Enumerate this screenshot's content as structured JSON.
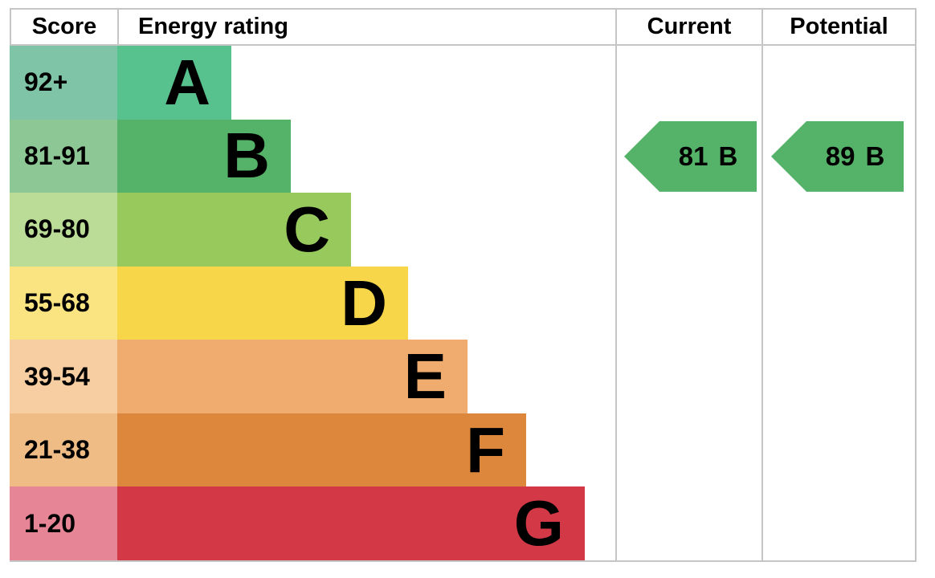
{
  "header": {
    "score": "Score",
    "energy_rating": "Energy rating",
    "current": "Current",
    "potential": "Potential"
  },
  "chart_data": {
    "type": "bar",
    "chart_kind": "epc-energy-efficiency-rating",
    "columns": [
      "Score",
      "Energy rating",
      "Current",
      "Potential"
    ],
    "bands": [
      {
        "grade": "A",
        "score_range": "92+",
        "bar_color": "#57c28e",
        "range_bg": "#7fc4a6",
        "bar_length": 142
      },
      {
        "grade": "B",
        "score_range": "81-91",
        "bar_color": "#54b369",
        "range_bg": "#8dc795",
        "bar_length": 216
      },
      {
        "grade": "C",
        "score_range": "69-80",
        "bar_color": "#97c95c",
        "range_bg": "#bbdc96",
        "bar_length": 291
      },
      {
        "grade": "D",
        "score_range": "55-68",
        "bar_color": "#f7d64a",
        "range_bg": "#fae482",
        "bar_length": 362
      },
      {
        "grade": "E",
        "score_range": "39-54",
        "bar_color": "#efac6e",
        "range_bg": "#f6cea2",
        "bar_length": 436
      },
      {
        "grade": "F",
        "score_range": "21-38",
        "bar_color": "#dd873c",
        "range_bg": "#eebc84",
        "bar_length": 509
      },
      {
        "grade": "G",
        "score_range": "1-20",
        "bar_color": "#d23845",
        "range_bg": "#e58595",
        "bar_length": 582
      }
    ],
    "current": {
      "score": "81",
      "grade": "B",
      "color": "#54b369"
    },
    "potential": {
      "score": "89",
      "grade": "B",
      "color": "#54b369"
    }
  },
  "style": {
    "grid_color": "#c5c5c5",
    "text_color": "#000000"
  }
}
